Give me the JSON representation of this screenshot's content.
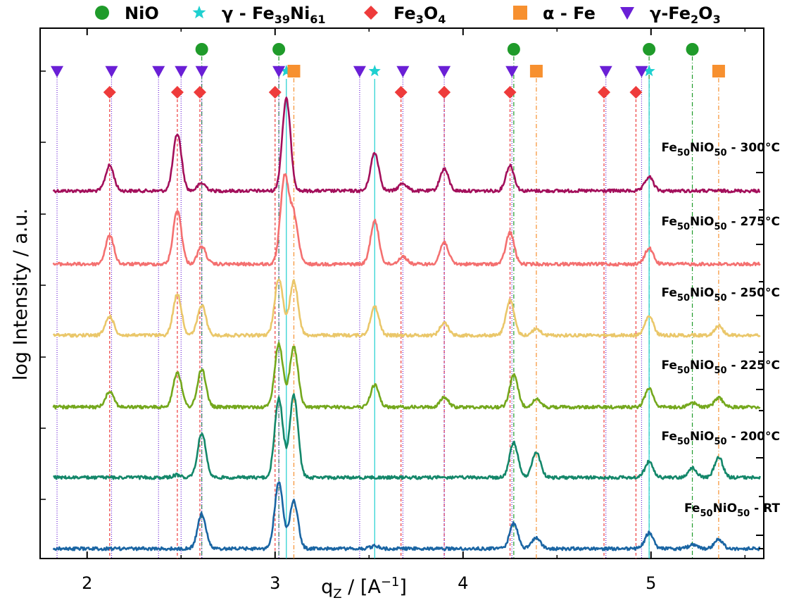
{
  "chart_data": {
    "type": "line",
    "xlabel": "q_Z / [A^-1]",
    "ylabel": "log Intensity / a.u.",
    "xlim": [
      1.75,
      5.6
    ],
    "x_ticks": [
      2,
      3,
      4,
      5
    ],
    "legend_position": "top",
    "legend": [
      {
        "name": "NiO",
        "marker": "circle",
        "color": "#1f9b2a"
      },
      {
        "name": "γ - Fe39Ni61",
        "marker": "star",
        "color": "#1fd0d0"
      },
      {
        "name": "Fe3O4",
        "marker": "diamond",
        "color": "#ee3b3b"
      },
      {
        "name": "α - Fe",
        "marker": "square",
        "color": "#f7902f"
      },
      {
        "name": "γ-Fe2O3",
        "marker": "triangle-down",
        "color": "#6a1fd6"
      }
    ],
    "reference_peaks": {
      "NiO": [
        2.61,
        3.02,
        4.27,
        4.99,
        5.22
      ],
      "γ - Fe39Ni61": [
        3.06,
        3.53,
        4.99
      ],
      "Fe3O4": [
        2.12,
        2.48,
        2.6,
        3.0,
        3.67,
        3.9,
        4.25,
        4.75,
        4.92
      ],
      "α - Fe": [
        3.1,
        4.39,
        5.36
      ],
      "γ-Fe2O3": [
        1.84,
        2.13,
        2.38,
        2.5,
        2.61,
        3.02,
        3.45,
        3.68,
        3.9,
        4.26,
        4.76,
        4.95
      ]
    },
    "series": [
      {
        "name": "Fe50NiO50 - 300°C",
        "color": "#a30f5b",
        "peaks": [
          [
            2.12,
            0.4
          ],
          [
            2.48,
            0.9
          ],
          [
            2.61,
            0.12
          ],
          [
            3.06,
            1.45
          ],
          [
            3.53,
            0.6
          ],
          [
            3.68,
            0.12
          ],
          [
            3.9,
            0.35
          ],
          [
            4.25,
            0.4
          ],
          [
            4.99,
            0.22
          ]
        ]
      },
      {
        "name": "Fe50NiO50 - 275°C",
        "color": "#f47070",
        "peaks": [
          [
            2.12,
            0.45
          ],
          [
            2.48,
            0.85
          ],
          [
            2.61,
            0.28
          ],
          [
            3.05,
            1.35
          ],
          [
            3.1,
            0.75
          ],
          [
            3.53,
            0.68
          ],
          [
            3.68,
            0.12
          ],
          [
            3.9,
            0.35
          ],
          [
            4.25,
            0.5
          ],
          [
            4.99,
            0.25
          ]
        ]
      },
      {
        "name": "Fe50NiO50 - 250°C",
        "color": "#eac76a",
        "peaks": [
          [
            2.12,
            0.3
          ],
          [
            2.48,
            0.65
          ],
          [
            2.61,
            0.47
          ],
          [
            3.02,
            0.9
          ],
          [
            3.1,
            0.85
          ],
          [
            3.53,
            0.45
          ],
          [
            3.9,
            0.2
          ],
          [
            4.25,
            0.55
          ],
          [
            4.39,
            0.1
          ],
          [
            4.99,
            0.3
          ],
          [
            5.36,
            0.15
          ]
        ]
      },
      {
        "name": "Fe50NiO50 - 225°C",
        "color": "#74a81d",
        "peaks": [
          [
            2.12,
            0.25
          ],
          [
            2.48,
            0.55
          ],
          [
            2.61,
            0.6
          ],
          [
            3.02,
            1.0
          ],
          [
            3.1,
            0.95
          ],
          [
            3.53,
            0.35
          ],
          [
            3.9,
            0.15
          ],
          [
            4.27,
            0.5
          ],
          [
            4.39,
            0.12
          ],
          [
            4.99,
            0.3
          ],
          [
            5.22,
            0.07
          ],
          [
            5.36,
            0.15
          ]
        ]
      },
      {
        "name": "Fe50NiO50 - 200°C",
        "color": "#14876a",
        "peaks": [
          [
            2.48,
            0.04
          ],
          [
            2.61,
            0.7
          ],
          [
            3.02,
            1.25
          ],
          [
            3.1,
            1.3
          ],
          [
            4.27,
            0.55
          ],
          [
            4.39,
            0.4
          ],
          [
            4.99,
            0.25
          ],
          [
            5.22,
            0.15
          ],
          [
            5.36,
            0.32
          ]
        ]
      },
      {
        "name": "Fe50NiO50 - RT",
        "color": "#1a65a3",
        "peaks": [
          [
            2.61,
            0.55
          ],
          [
            3.02,
            1.05
          ],
          [
            3.1,
            0.75
          ],
          [
            3.53,
            0.04
          ],
          [
            4.27,
            0.4
          ],
          [
            4.39,
            0.18
          ],
          [
            4.99,
            0.25
          ],
          [
            5.22,
            0.06
          ],
          [
            5.36,
            0.15
          ]
        ]
      }
    ]
  }
}
